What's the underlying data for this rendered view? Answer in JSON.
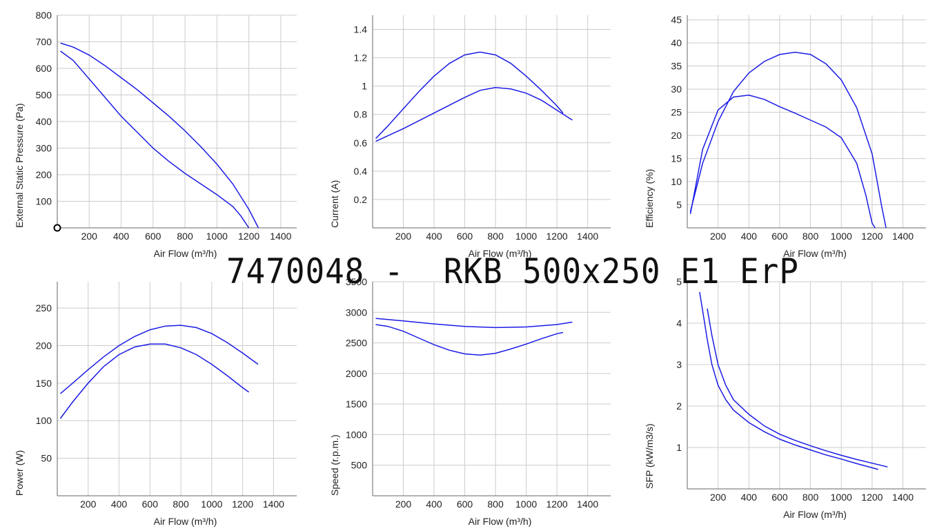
{
  "title": "7470048 -  RKB 500x250 E1 ErP",
  "colors": {
    "curve": "#1a1ae6",
    "grid": "#cccccc",
    "axis": "#666666"
  },
  "chart_data": [
    {
      "type": "line",
      "xlabel": "Air Flow (m³/h)",
      "ylabel": "External Static Pressure (Pa)",
      "xlim": [
        0,
        1500
      ],
      "ylim": [
        0,
        800
      ],
      "xticks": [
        200,
        400,
        600,
        800,
        1000,
        1200,
        1400
      ],
      "yticks": [
        100,
        200,
        300,
        400,
        500,
        600,
        700,
        800
      ],
      "marker": {
        "x": 0,
        "y": 0
      },
      "series": [
        {
          "points": [
            [
              20,
              695
            ],
            [
              100,
              680
            ],
            [
              200,
              650
            ],
            [
              300,
              610
            ],
            [
              400,
              565
            ],
            [
              500,
              520
            ],
            [
              600,
              470
            ],
            [
              700,
              420
            ],
            [
              800,
              365
            ],
            [
              900,
              305
            ],
            [
              1000,
              240
            ],
            [
              1100,
              165
            ],
            [
              1200,
              70
            ],
            [
              1260,
              0
            ]
          ]
        },
        {
          "points": [
            [
              20,
              665
            ],
            [
              100,
              630
            ],
            [
              200,
              560
            ],
            [
              300,
              490
            ],
            [
              400,
              420
            ],
            [
              500,
              360
            ],
            [
              600,
              300
            ],
            [
              700,
              250
            ],
            [
              800,
              205
            ],
            [
              900,
              165
            ],
            [
              1000,
              125
            ],
            [
              1100,
              80
            ],
            [
              1150,
              45
            ],
            [
              1200,
              0
            ]
          ]
        }
      ]
    },
    {
      "type": "line",
      "xlabel": "Air Flow (m³/h)",
      "ylabel": "Current (A)",
      "xlim": [
        0,
        1550
      ],
      "ylim": [
        0,
        1.5
      ],
      "xticks": [
        200,
        400,
        600,
        800,
        1000,
        1200,
        1400
      ],
      "yticks": [
        0.2,
        0.4,
        0.6,
        0.8,
        1,
        1.2,
        1.4
      ],
      "series": [
        {
          "points": [
            [
              20,
              0.63
            ],
            [
              100,
              0.72
            ],
            [
              200,
              0.84
            ],
            [
              300,
              0.96
            ],
            [
              400,
              1.07
            ],
            [
              500,
              1.16
            ],
            [
              600,
              1.22
            ],
            [
              700,
              1.24
            ],
            [
              800,
              1.22
            ],
            [
              900,
              1.16
            ],
            [
              1000,
              1.07
            ],
            [
              1100,
              0.97
            ],
            [
              1200,
              0.86
            ],
            [
              1240,
              0.81
            ]
          ]
        },
        {
          "points": [
            [
              20,
              0.61
            ],
            [
              200,
              0.7
            ],
            [
              400,
              0.81
            ],
            [
              600,
              0.92
            ],
            [
              700,
              0.97
            ],
            [
              800,
              0.99
            ],
            [
              900,
              0.98
            ],
            [
              1000,
              0.95
            ],
            [
              1100,
              0.9
            ],
            [
              1200,
              0.83
            ],
            [
              1300,
              0.76
            ]
          ]
        }
      ]
    },
    {
      "type": "line",
      "xlabel": "Air Flow (m³/h)",
      "ylabel": "Efficiency (%)",
      "xlim": [
        0,
        1550
      ],
      "ylim": [
        0,
        46
      ],
      "xticks": [
        200,
        400,
        600,
        800,
        1000,
        1200,
        1400
      ],
      "yticks": [
        5,
        10,
        15,
        20,
        25,
        30,
        35,
        40,
        45
      ],
      "series": [
        {
          "points": [
            [
              20,
              3.5
            ],
            [
              100,
              14
            ],
            [
              200,
              23
            ],
            [
              300,
              29.5
            ],
            [
              400,
              33.5
            ],
            [
              500,
              36
            ],
            [
              600,
              37.5
            ],
            [
              700,
              38
            ],
            [
              800,
              37.5
            ],
            [
              900,
              35.5
            ],
            [
              1000,
              32
            ],
            [
              1100,
              26
            ],
            [
              1200,
              16
            ],
            [
              1260,
              5
            ],
            [
              1290,
              0
            ]
          ]
        },
        {
          "points": [
            [
              20,
              3
            ],
            [
              100,
              17
            ],
            [
              200,
              25.5
            ],
            [
              300,
              28.3
            ],
            [
              400,
              28.7
            ],
            [
              500,
              27.8
            ],
            [
              600,
              26.2
            ],
            [
              700,
              24.8
            ],
            [
              800,
              23.3
            ],
            [
              900,
              21.8
            ],
            [
              1000,
              19.5
            ],
            [
              1100,
              14
            ],
            [
              1160,
              7
            ],
            [
              1200,
              1
            ],
            [
              1220,
              0
            ]
          ]
        }
      ]
    },
    {
      "type": "line",
      "xlabel": "Air Flow (m³/h)",
      "ylabel": "Power (W)",
      "xlim": [
        0,
        1550
      ],
      "ylim": [
        0,
        285
      ],
      "xticks": [
        200,
        400,
        600,
        800,
        1000,
        1200,
        1400
      ],
      "yticks": [
        50,
        100,
        150,
        200,
        250
      ],
      "series": [
        {
          "points": [
            [
              20,
              136
            ],
            [
              100,
              150
            ],
            [
              200,
              168
            ],
            [
              300,
              185
            ],
            [
              400,
              200
            ],
            [
              500,
              212
            ],
            [
              600,
              221
            ],
            [
              700,
              226
            ],
            [
              800,
              227
            ],
            [
              900,
              224
            ],
            [
              1000,
              216
            ],
            [
              1100,
              204
            ],
            [
              1200,
              190
            ],
            [
              1300,
              175
            ]
          ]
        },
        {
          "points": [
            [
              20,
              103
            ],
            [
              100,
              125
            ],
            [
              200,
              150
            ],
            [
              300,
              172
            ],
            [
              400,
              188
            ],
            [
              500,
              198
            ],
            [
              600,
              202
            ],
            [
              700,
              202
            ],
            [
              800,
              197
            ],
            [
              900,
              188
            ],
            [
              1000,
              175
            ],
            [
              1100,
              160
            ],
            [
              1200,
              144
            ],
            [
              1240,
              138
            ]
          ]
        }
      ]
    },
    {
      "type": "line",
      "xlabel": "Air Flow (m³/h)",
      "ylabel": "Speed (r.p.m.)",
      "xlim": [
        0,
        1550
      ],
      "ylim": [
        0,
        3500
      ],
      "xticks": [
        200,
        400,
        600,
        800,
        1000,
        1200,
        1400
      ],
      "yticks": [
        500,
        1000,
        1500,
        2000,
        2500,
        3000,
        3500
      ],
      "series": [
        {
          "points": [
            [
              20,
              2900
            ],
            [
              200,
              2860
            ],
            [
              400,
              2810
            ],
            [
              600,
              2770
            ],
            [
              800,
              2750
            ],
            [
              1000,
              2760
            ],
            [
              1200,
              2800
            ],
            [
              1300,
              2840
            ]
          ]
        },
        {
          "points": [
            [
              20,
              2800
            ],
            [
              100,
              2770
            ],
            [
              200,
              2690
            ],
            [
              300,
              2580
            ],
            [
              400,
              2470
            ],
            [
              500,
              2380
            ],
            [
              600,
              2320
            ],
            [
              700,
              2300
            ],
            [
              800,
              2330
            ],
            [
              900,
              2400
            ],
            [
              1000,
              2480
            ],
            [
              1100,
              2570
            ],
            [
              1200,
              2650
            ],
            [
              1240,
              2670
            ]
          ]
        }
      ]
    },
    {
      "type": "line",
      "xlabel": "Air Flow (m³/h)",
      "ylabel": "SFP (kW/m3/s)",
      "xlim": [
        0,
        1550
      ],
      "ylim": [
        0,
        5
      ],
      "xticks": [
        200,
        400,
        600,
        800,
        1000,
        1200,
        1400
      ],
      "yticks": [
        1,
        2,
        3,
        4,
        5
      ],
      "series": [
        {
          "points": [
            [
              80,
              4.75
            ],
            [
              100,
              4.3
            ],
            [
              130,
              3.6
            ],
            [
              160,
              3.0
            ],
            [
              200,
              2.5
            ],
            [
              250,
              2.15
            ],
            [
              300,
              1.9
            ],
            [
              400,
              1.6
            ],
            [
              500,
              1.38
            ],
            [
              600,
              1.2
            ],
            [
              700,
              1.06
            ],
            [
              800,
              0.94
            ],
            [
              900,
              0.82
            ],
            [
              1000,
              0.72
            ],
            [
              1100,
              0.61
            ],
            [
              1200,
              0.51
            ],
            [
              1240,
              0.47
            ]
          ]
        },
        {
          "points": [
            [
              130,
              4.35
            ],
            [
              160,
              3.7
            ],
            [
              200,
              3.0
            ],
            [
              250,
              2.5
            ],
            [
              300,
              2.15
            ],
            [
              400,
              1.8
            ],
            [
              500,
              1.52
            ],
            [
              600,
              1.32
            ],
            [
              700,
              1.17
            ],
            [
              800,
              1.04
            ],
            [
              900,
              0.92
            ],
            [
              1000,
              0.81
            ],
            [
              1100,
              0.71
            ],
            [
              1200,
              0.62
            ],
            [
              1300,
              0.53
            ]
          ]
        }
      ]
    }
  ]
}
